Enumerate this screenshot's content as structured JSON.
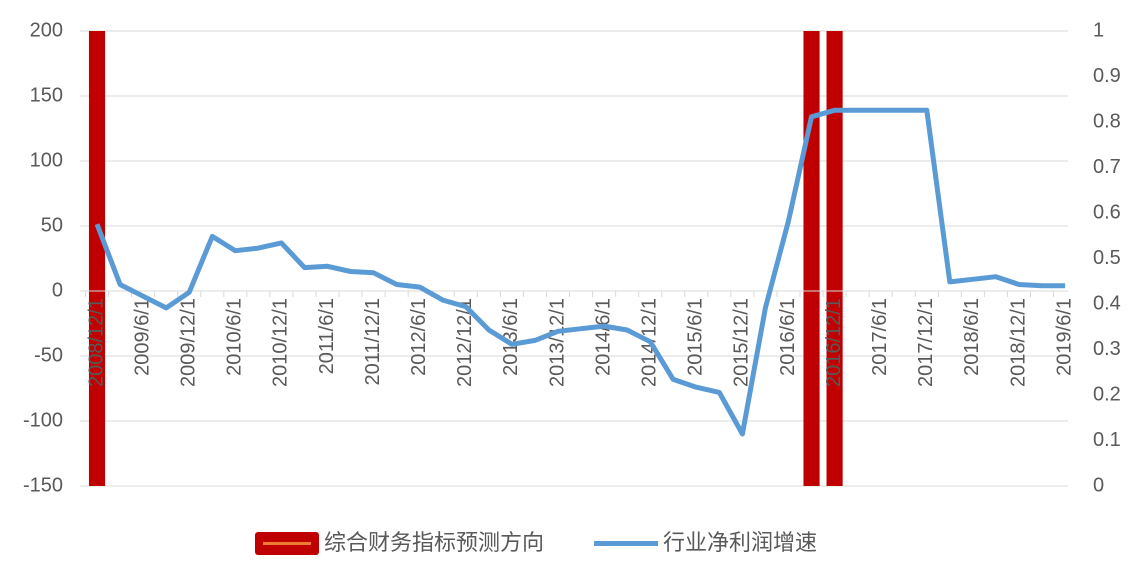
{
  "chart_data": {
    "type": "combo",
    "categories": [
      "2008/12/1",
      null,
      "2009/6/1",
      null,
      "2009/12/1",
      null,
      "2010/6/1",
      null,
      "2010/12/1",
      null,
      "2011/6/1",
      null,
      "2011/12/1",
      null,
      "2012/6/1",
      null,
      "2012/12/1",
      null,
      "2013/6/1",
      null,
      "2013/12/1",
      null,
      "2014/6/1",
      null,
      "2014/12/1",
      null,
      "2015/6/1",
      null,
      "2015/12/1",
      null,
      "2016/6/1",
      null,
      "2016/12/1",
      null,
      "2017/6/1",
      null,
      "2017/12/1",
      null,
      "2018/6/1",
      null,
      "2018/12/1",
      null,
      "2019/6/1"
    ],
    "series": [
      {
        "name": "综合财务指标预测方向",
        "type": "bar",
        "axis": "y2",
        "color": "#c00000",
        "values": [
          1,
          0,
          0,
          0,
          0,
          0,
          0,
          0,
          0,
          0,
          0,
          0,
          0,
          0,
          0,
          0,
          0,
          0,
          0,
          0,
          0,
          0,
          0,
          0,
          0,
          0,
          0,
          0,
          0,
          0,
          0,
          1,
          1,
          0,
          0,
          0,
          0,
          0,
          0,
          0,
          0,
          0,
          0
        ]
      },
      {
        "name": "行业净利润增速",
        "type": "line",
        "color": "#5b9bd5",
        "values": [
          51.5,
          5,
          -4,
          -13,
          -1,
          42,
          31,
          33,
          37,
          18,
          19,
          15,
          14,
          5,
          3,
          -7,
          -12,
          -30,
          -41,
          -38,
          -31,
          -29,
          -27,
          -30,
          -39,
          -68,
          -74,
          -78,
          -110,
          -13,
          54,
          134,
          139,
          139,
          139,
          139,
          139,
          7,
          9,
          11,
          5,
          4,
          4
        ]
      }
    ],
    "ylim": [
      -150,
      200
    ],
    "yticks": [
      -150,
      -100,
      -50,
      0,
      50,
      100,
      150,
      200
    ],
    "y2lim": [
      0,
      1
    ],
    "y2ticks": [
      0,
      0.1,
      0.2,
      0.3,
      0.4,
      0.5,
      0.6,
      0.7,
      0.8,
      0.9,
      1
    ],
    "grid": true
  }
}
